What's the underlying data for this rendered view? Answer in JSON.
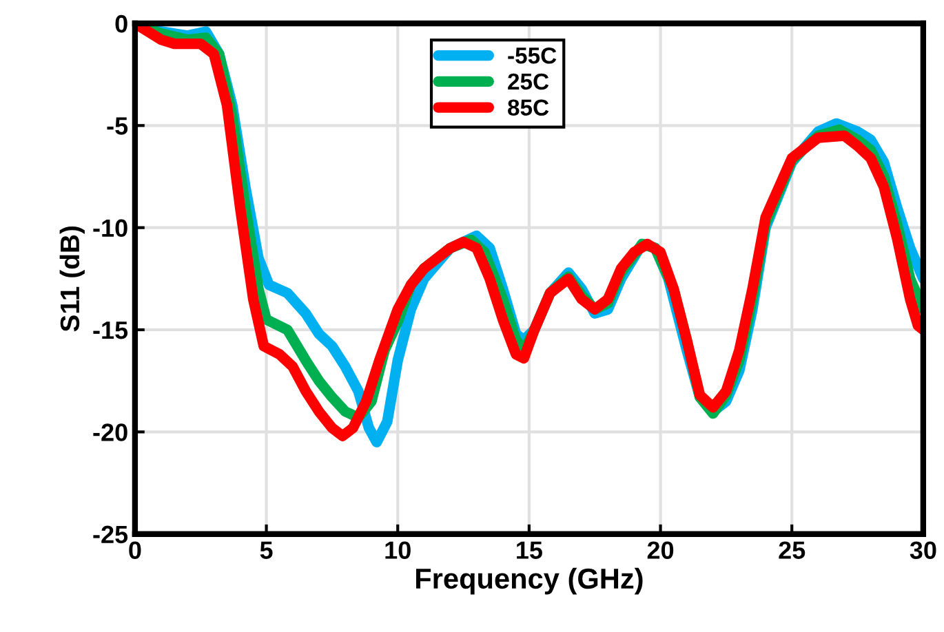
{
  "chart_data": {
    "type": "line",
    "xlabel": "Frequency (GHz)",
    "ylabel": "S11 (dB)",
    "xlim": [
      0,
      30
    ],
    "ylim": [
      -25,
      0
    ],
    "xticks": [
      0,
      5,
      10,
      15,
      20,
      25,
      30
    ],
    "yticks": [
      -25,
      -20,
      -15,
      -10,
      -5,
      0
    ],
    "grid": true,
    "legend": "top",
    "marker": "none",
    "line_style": "solid",
    "series": [
      {
        "name": "-55C",
        "color": "#00b0f0",
        "x": [
          0,
          1,
          2,
          2.7,
          3.2,
          3.7,
          4.2,
          4.7,
          5.1,
          5.8,
          6.5,
          7,
          7.5,
          8,
          8.5,
          8.9,
          9.2,
          9.6,
          10,
          10.5,
          11,
          12,
          13,
          13.5,
          14,
          14.5,
          14.8,
          15.2,
          15.8,
          16.5,
          17,
          17.5,
          18,
          18.5,
          19.3,
          19.8,
          20.3,
          21,
          21.5,
          22,
          22.5,
          23,
          23.5,
          24,
          25,
          26,
          26.7,
          27.5,
          28,
          28.5,
          29,
          29.5,
          30
        ],
        "values": [
          0,
          -0.4,
          -0.6,
          -0.4,
          -1.5,
          -4,
          -8,
          -11.5,
          -12.8,
          -13.2,
          -14.2,
          -15.2,
          -15.8,
          -16.8,
          -18,
          -19.8,
          -20.5,
          -19.5,
          -16.5,
          -14,
          -12.5,
          -11,
          -10.4,
          -11,
          -13,
          -15.2,
          -15.5,
          -15,
          -13.2,
          -12.2,
          -13,
          -14.2,
          -14,
          -12.5,
          -10.8,
          -11,
          -12.5,
          -16,
          -18.3,
          -19,
          -18.5,
          -17,
          -14,
          -10,
          -6.8,
          -5.3,
          -4.9,
          -5.3,
          -5.7,
          -6.8,
          -9,
          -11,
          -12.5
        ]
      },
      {
        "name": "25C",
        "color": "#00b050",
        "x": [
          0,
          1,
          2,
          2.7,
          3.2,
          3.7,
          4.2,
          4.7,
          5,
          5.8,
          6.5,
          7,
          7.5,
          8,
          8.5,
          9,
          9.5,
          10,
          10.5,
          11,
          12,
          12.8,
          13.3,
          14,
          14.5,
          14.8,
          15.2,
          15.8,
          16.5,
          17,
          17.5,
          18,
          18.5,
          19.3,
          19.8,
          20.5,
          21,
          21.5,
          22,
          22.5,
          23,
          23.5,
          24,
          25,
          26,
          26.8,
          27.5,
          28,
          28.5,
          29,
          29.5,
          30
        ],
        "values": [
          0,
          -0.5,
          -0.8,
          -0.7,
          -1.5,
          -4.5,
          -9,
          -13,
          -14.5,
          -15,
          -16.5,
          -17.5,
          -18.3,
          -19,
          -19.3,
          -18.5,
          -16,
          -14.6,
          -12.8,
          -12,
          -11,
          -10.6,
          -11.2,
          -13.5,
          -15.5,
          -16,
          -15,
          -13.2,
          -12.4,
          -13.3,
          -14,
          -13.7,
          -12.2,
          -10.8,
          -11,
          -13,
          -15.5,
          -18.3,
          -19.1,
          -18.2,
          -16.5,
          -13.5,
          -9.8,
          -6.7,
          -5.5,
          -5.2,
          -5.7,
          -6.2,
          -7.5,
          -9.8,
          -12.5,
          -14
        ]
      },
      {
        "name": "85C",
        "color": "#ff0000",
        "x": [
          0,
          1,
          1.5,
          2.5,
          3,
          3.5,
          4,
          4.5,
          4.9,
          5.5,
          6,
          6.5,
          7,
          7.5,
          7.9,
          8.3,
          8.8,
          9.3,
          10,
          10.5,
          11,
          12,
          12.5,
          13,
          13.5,
          14,
          14.5,
          14.8,
          15.2,
          15.8,
          16.5,
          17,
          17.5,
          18,
          18.5,
          19,
          19.5,
          20,
          20.5,
          21,
          21.5,
          22,
          22.5,
          23,
          23.5,
          24,
          25,
          26,
          27,
          27.5,
          28,
          28.5,
          29,
          29.5,
          29.8,
          30
        ],
        "values": [
          0,
          -0.8,
          -1,
          -1,
          -1.5,
          -4,
          -9,
          -13.5,
          -15.8,
          -16.2,
          -16.8,
          -18,
          -19,
          -19.8,
          -20.2,
          -19.8,
          -18.5,
          -16.5,
          -14,
          -12.8,
          -12,
          -11,
          -10.7,
          -11,
          -12.5,
          -14.5,
          -16.2,
          -16.4,
          -15,
          -13.2,
          -12.5,
          -13.5,
          -14,
          -13.5,
          -12,
          -11.2,
          -10.8,
          -11.2,
          -13,
          -15.5,
          -18.2,
          -18.8,
          -18,
          -16,
          -13,
          -9.5,
          -6.6,
          -5.6,
          -5.5,
          -6,
          -6.6,
          -8,
          -10.5,
          -13.5,
          -14.8,
          -15
        ]
      }
    ]
  }
}
